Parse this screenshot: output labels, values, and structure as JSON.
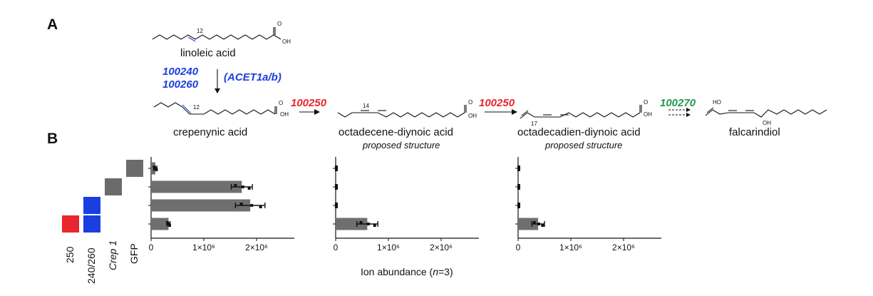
{
  "panels": {
    "a": "A",
    "b": "B"
  },
  "compounds": {
    "linoleic": "linoleic acid",
    "crepenynic": "crepenynic acid",
    "octadecene": "octadecene-diynoic acid",
    "octadecadien": "octadecadien-diynoic acid",
    "falcarindiol": "falcarindiol",
    "proposed": "proposed structure"
  },
  "genes": {
    "g100240": "100240",
    "g100260": "100260",
    "acet": "(ACET1a/b)",
    "g100250": "100250",
    "g100270": "100270"
  },
  "atom_labels": {
    "c12": "12",
    "c14": "14",
    "c17": "17",
    "oh": "OH",
    "o": "O",
    "ho": "HO"
  },
  "gene_legend": [
    "250",
    "240/260",
    "Crep 1",
    "GFP"
  ],
  "x_axis_label_main": "Ion abundance (",
  "x_axis_label_n": "n",
  "x_axis_label_tail": "=3)",
  "colors": {
    "red": "#e8262b",
    "blue": "#1a3fe0",
    "green": "#1e9a4a",
    "gray": "#6b6b6b",
    "bar": "#6f6f6f"
  },
  "chart_data": [
    {
      "type": "bar",
      "orientation": "horizontal",
      "target": "crepenynic acid",
      "categories": [
        "GFP",
        "Crep 1",
        "240/260",
        "250 + 240/260"
      ],
      "values": [
        80000,
        1720000,
        1880000,
        330000
      ],
      "errors": [
        30000,
        200000,
        280000,
        30000
      ],
      "xlim": [
        0,
        2500000
      ],
      "xticks": [
        "0",
        "1×10⁶",
        "2×10⁶"
      ]
    },
    {
      "type": "bar",
      "orientation": "horizontal",
      "target": "octadecene-diynoic acid",
      "categories": [
        "GFP",
        "Crep 1",
        "240/260",
        "250 + 240/260"
      ],
      "values": [
        0,
        0,
        0,
        600000
      ],
      "errors": [
        0,
        0,
        0,
        200000
      ],
      "xlim": [
        0,
        2500000
      ],
      "xticks": [
        "0",
        "1×10⁶",
        "2×10⁶"
      ]
    },
    {
      "type": "bar",
      "orientation": "horizontal",
      "target": "octadecadien-diynoic acid",
      "categories": [
        "GFP",
        "Crep 1",
        "240/260",
        "250 + 240/260"
      ],
      "values": [
        0,
        0,
        0,
        380000
      ],
      "errors": [
        0,
        0,
        0,
        120000
      ],
      "xlim": [
        0,
        2500000
      ],
      "xticks": [
        "0",
        "1×10⁶",
        "2×10⁶"
      ]
    }
  ]
}
